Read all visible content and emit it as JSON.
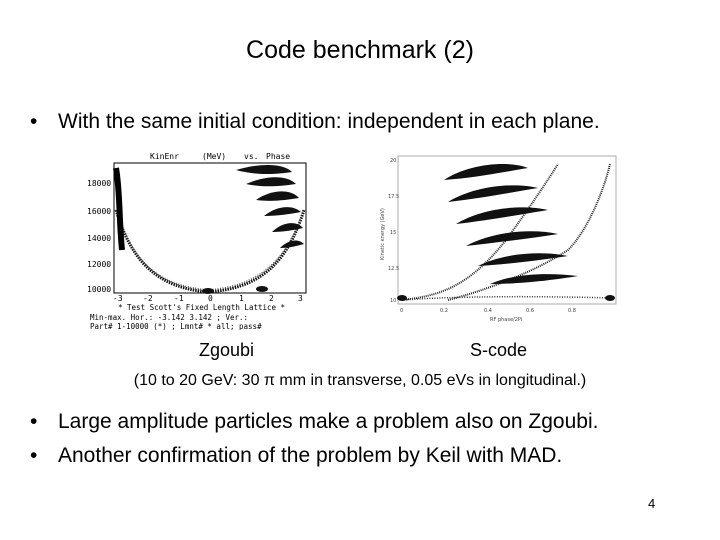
{
  "slide": {
    "title": "Code benchmark (2)",
    "bullet1": "With the same initial condition: independent in each plane.",
    "bullet_marker": "•",
    "label_left": "Zgoubi",
    "label_right": "S-code",
    "note": "(10 to 20 GeV: 30 π mm in transverse, 0.05 eVs in longitudinal.)",
    "bullet2": "Large amplitude particles make a problem also on Zgoubi.",
    "bullet3": "Another confirmation of the problem by Keil with MAD.",
    "page_number": "4"
  },
  "zgoubi_plot": {
    "header_left": "KinEnr",
    "header_unit": "(MeV)",
    "header_vs": "vs.",
    "header_right": "Phase",
    "y_ticks": [
      "18000",
      "16000",
      "14000",
      "12000",
      "10000"
    ],
    "x_ticks": [
      "-3",
      "-2",
      "-1",
      "0",
      "1",
      "2",
      "3"
    ],
    "footer_line1": "* Test Scott's Fixed Length Lattice *",
    "footer_line2": "Min-max. Hor.: -3.142  3.142 ; Ver.:",
    "footer_line3": "Part# 1-10000 (*) ; Lmnt# * all; pass#"
  },
  "scode_plot": {
    "y_ticks": [
      "20",
      "17.5",
      "15",
      "12.5",
      "10"
    ],
    "x_ticks": [
      "0",
      "0.2",
      "0.4",
      "0.6",
      "0.8"
    ],
    "x_label": "RF phase/2Pi",
    "y_label": "Kinetic energy (GeV)"
  }
}
